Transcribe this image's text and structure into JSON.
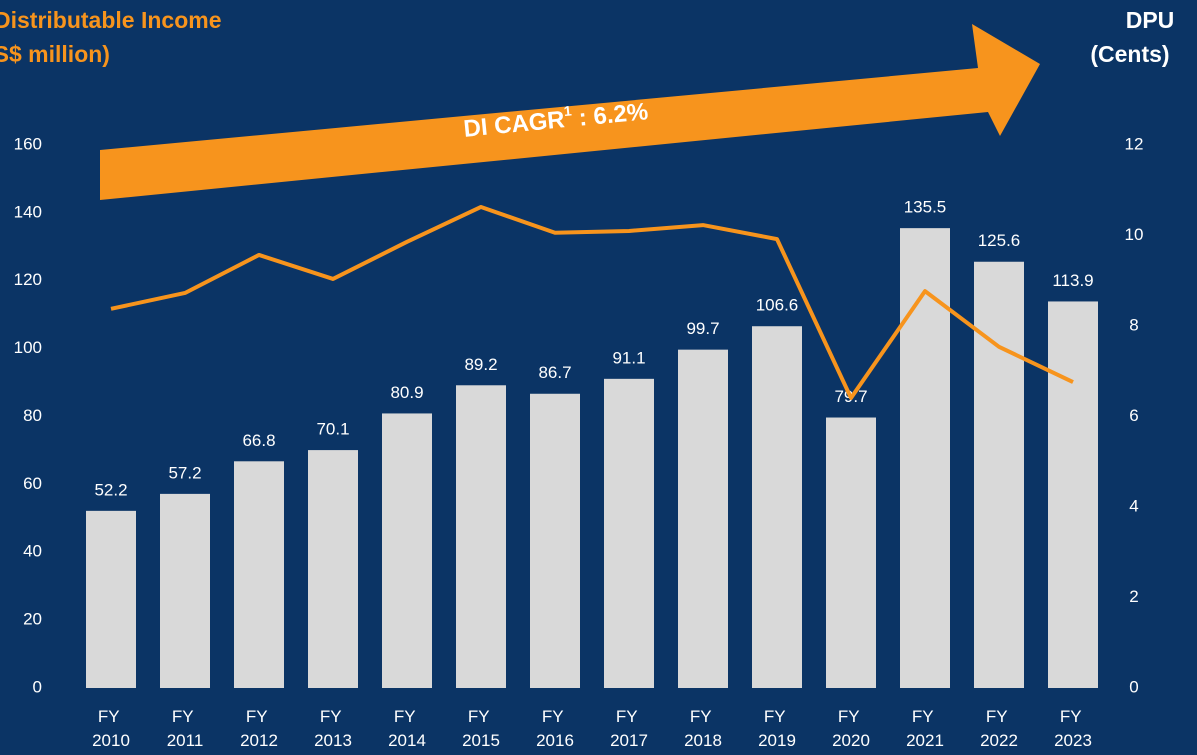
{
  "chart_data": {
    "type": "bar_line",
    "title": [
      "Distributable Income",
      "(S$ million)"
    ],
    "y2_title": [
      "DPU",
      "(Cents)"
    ],
    "annotation": {
      "text": "DI CAGR",
      "superscript": "1",
      "suffix": " : 6.2%"
    },
    "categories": [
      "FY 2010",
      "FY 2011",
      "FY 2012",
      "FY 2013",
      "FY 2014",
      "FY 2015",
      "FY 2016",
      "FY 2017",
      "FY 2018",
      "FY 2019",
      "FY 2020",
      "FY 2021",
      "FY 2022",
      "FY 2023"
    ],
    "series": [
      {
        "name": "Distributable Income",
        "color": "#d9d9d9",
        "kind": "bar",
        "values": [
          52.2,
          57.2,
          66.8,
          70.1,
          80.9,
          89.2,
          86.7,
          91.1,
          99.7,
          106.6,
          79.7,
          135.5,
          125.6,
          113.9
        ]
      },
      {
        "name": "DPU",
        "color": "#f7941d",
        "kind": "line",
        "axis": "y2",
        "values": [
          8.38,
          8.73,
          9.57,
          9.04,
          9.86,
          10.63,
          10.06,
          10.1,
          10.23,
          9.92,
          6.41,
          8.77,
          7.54,
          6.76
        ]
      }
    ],
    "ylim": [
      0,
      160
    ],
    "yticks": [
      0,
      20,
      40,
      60,
      80,
      100,
      120,
      140,
      160
    ],
    "y2lim": [
      0,
      12
    ],
    "y2ticks": [
      0,
      2,
      4,
      6,
      8,
      10,
      12
    ],
    "arrow_color": "#f7941d"
  }
}
